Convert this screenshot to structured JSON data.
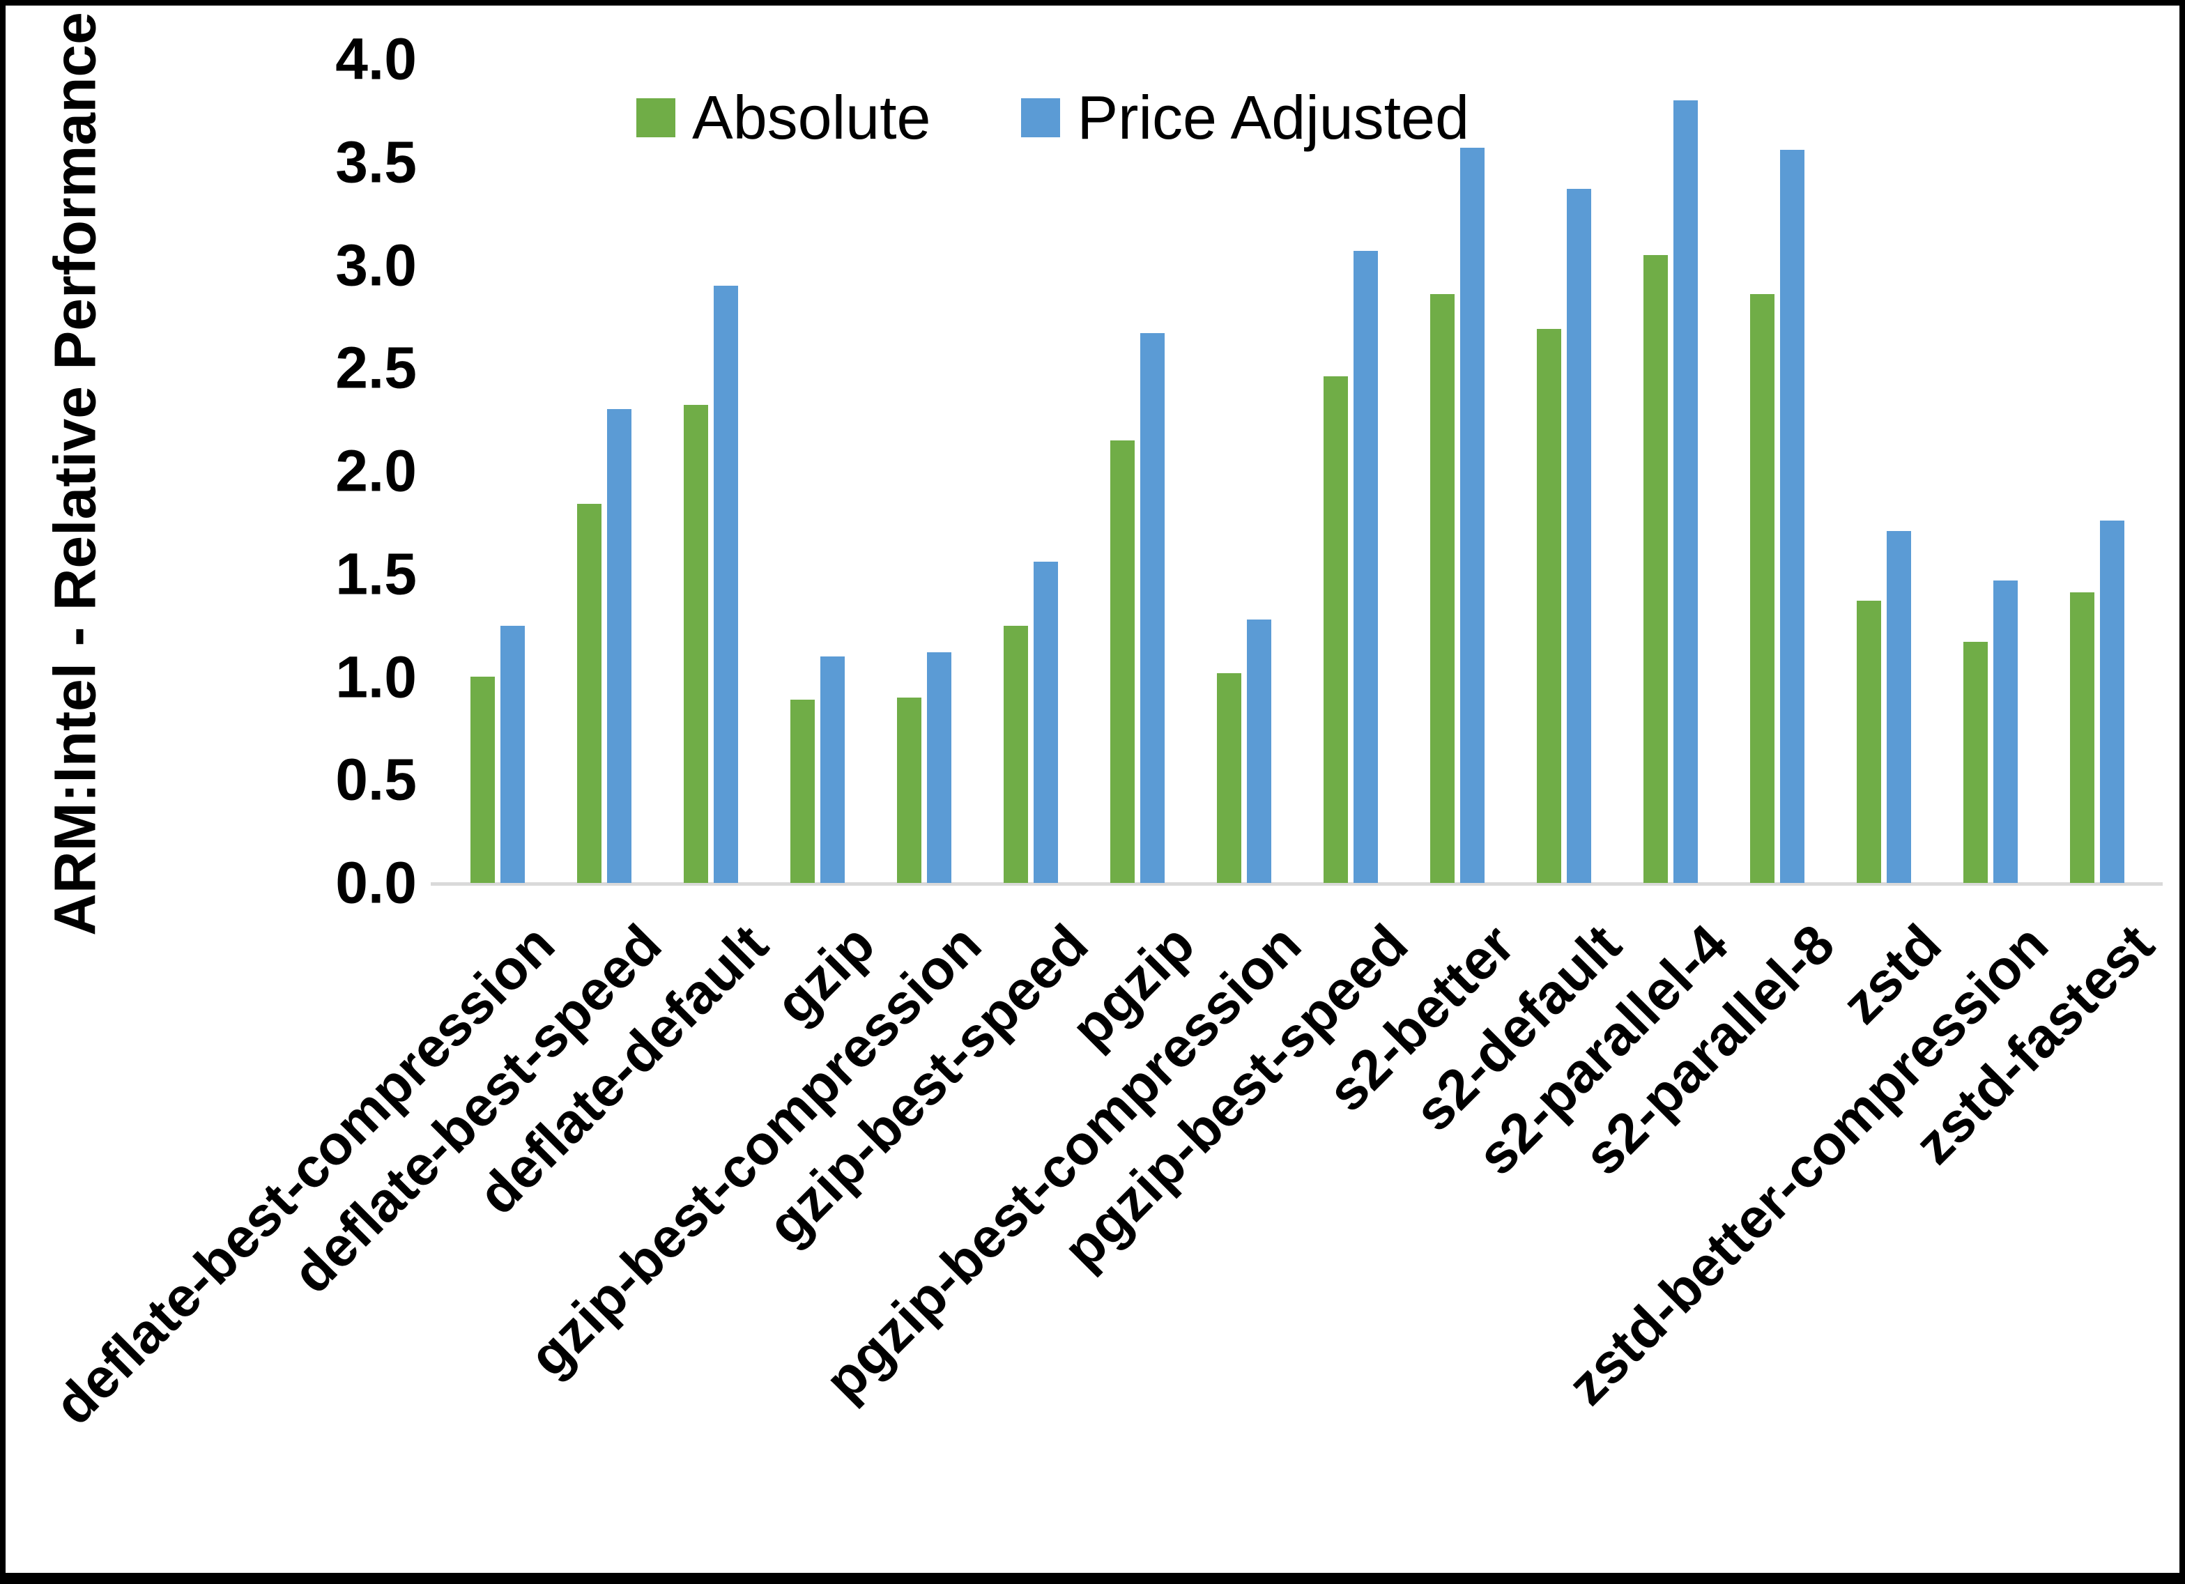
{
  "legend": [
    {
      "label": "Absolute",
      "color": "#70ad47"
    },
    {
      "label": "Price Adjusted",
      "color": "#5b9bd5"
    }
  ],
  "colors": {
    "absolute_green": "#70ad47",
    "price_adjusted_blue": "#5b9bd5",
    "axis_line": "#d9d9d9",
    "text": "#000000",
    "background": "#ffffff"
  },
  "chart_data": {
    "type": "bar",
    "title": "",
    "xlabel": "",
    "ylabel": "ARM:Intel - Relative Performance",
    "ylim": [
      0.0,
      4.0
    ],
    "ytick_step": 0.5,
    "yticks": [
      "4.0",
      "3.5",
      "3.0",
      "2.5",
      "2.0",
      "1.5",
      "1.0",
      "0.5",
      "0.0"
    ],
    "grid": false,
    "legend_position": "top-center-inside",
    "x_tick_rotation_deg": 45,
    "categories": [
      "deflate-best-compression",
      "deflate-best-speed",
      "deflate-default",
      "gzip",
      "gzip-best-compression",
      "gzip-best-speed",
      "pgzip",
      "pgzip-best-compression",
      "pgzip-best-speed",
      "s2-better",
      "s2-default",
      "s2-parallel-4",
      "s2-parallel-8",
      "zstd",
      "zstd-better-compression",
      "zstd-fastest"
    ],
    "series": [
      {
        "name": "Absolute",
        "color": "#70ad47",
        "values": [
          1.0,
          1.84,
          2.32,
          0.89,
          0.9,
          1.25,
          2.15,
          1.02,
          2.46,
          2.86,
          2.69,
          3.05,
          2.86,
          1.37,
          1.17,
          1.41
        ]
      },
      {
        "name": "Price Adjusted",
        "color": "#5b9bd5",
        "values": [
          1.25,
          2.3,
          2.9,
          1.1,
          1.12,
          1.56,
          2.67,
          1.28,
          3.07,
          3.57,
          3.37,
          3.8,
          3.56,
          1.71,
          1.47,
          1.76
        ]
      }
    ]
  }
}
